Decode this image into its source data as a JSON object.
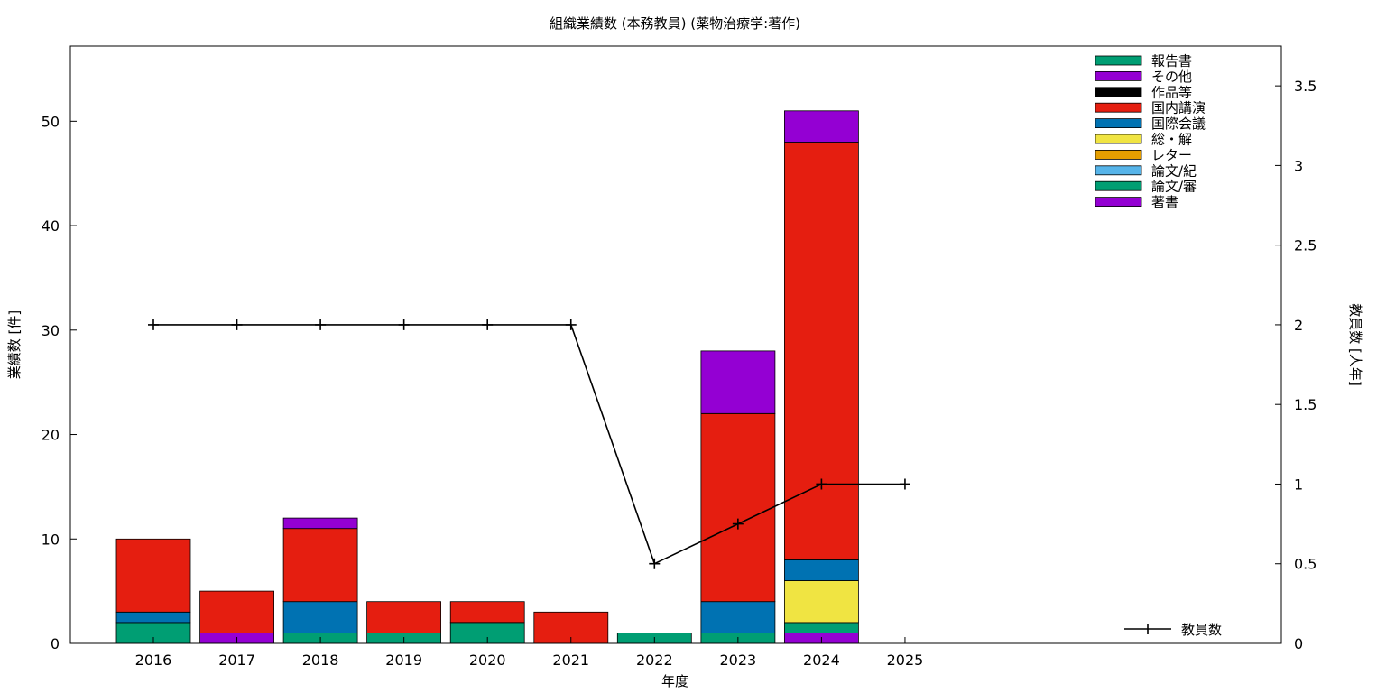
{
  "chart_data": {
    "type": "bar",
    "title": "組織業績数 (本務教員) (薬物治療学:著作)",
    "xlabel": "年度",
    "ylabel": "業績数 [件]",
    "y2label": "教員数 [人年]",
    "categories": [
      "2016",
      "2017",
      "2018",
      "2019",
      "2020",
      "2021",
      "2022",
      "2023",
      "2024",
      "2025"
    ],
    "ylim": [
      0,
      57.2
    ],
    "y2lim": [
      0,
      3.75
    ],
    "yticks": [
      "0",
      "10",
      "20",
      "30",
      "40",
      "50"
    ],
    "y2ticks": [
      "0",
      "0.5",
      "1",
      "1.5",
      "2",
      "2.5",
      "3",
      "3.5"
    ],
    "stacked": true,
    "legend_position": "top-right",
    "series": [
      {
        "name": "著書",
        "color": "#9400d3",
        "values": [
          0,
          1,
          0,
          0,
          0,
          0,
          0,
          0,
          1,
          0
        ]
      },
      {
        "name": "論文/審",
        "color": "#009e73",
        "values": [
          2,
          0,
          1,
          1,
          2,
          0,
          1,
          1,
          1,
          0
        ]
      },
      {
        "name": "論文/紀",
        "color": "#56b4e9",
        "values": [
          0,
          0,
          0,
          0,
          0,
          0,
          0,
          0,
          0,
          0
        ]
      },
      {
        "name": "レター",
        "color": "#e69f00",
        "values": [
          0,
          0,
          0,
          0,
          0,
          0,
          0,
          0,
          0,
          0
        ]
      },
      {
        "name": "総・解",
        "color": "#f0e442",
        "values": [
          0,
          0,
          0,
          0,
          0,
          0,
          0,
          0,
          4,
          0
        ]
      },
      {
        "name": "国際会議",
        "color": "#0072b2",
        "values": [
          1,
          0,
          3,
          0,
          0,
          0,
          0,
          3,
          2,
          0
        ]
      },
      {
        "name": "国内講演",
        "color": "#e51e10",
        "values": [
          7,
          4,
          7,
          3,
          2,
          3,
          0,
          18,
          40,
          0
        ]
      },
      {
        "name": "作品等",
        "color": "#000000",
        "values": [
          0,
          0,
          0,
          0,
          0,
          0,
          0,
          0,
          0,
          0
        ]
      },
      {
        "name": "その他",
        "color": "#9400d3",
        "values": [
          0,
          0,
          1,
          0,
          0,
          0,
          0,
          6,
          3,
          0
        ]
      },
      {
        "name": "報告書",
        "color": "#009e73",
        "values": [
          0,
          0,
          0,
          0,
          0,
          0,
          0,
          0,
          0,
          0
        ]
      }
    ],
    "line_series": {
      "name": "教員数",
      "axis": "y2",
      "color": "#000000",
      "values": [
        2,
        2,
        2,
        2,
        2,
        2,
        0.5,
        0.75,
        1,
        1
      ]
    }
  }
}
